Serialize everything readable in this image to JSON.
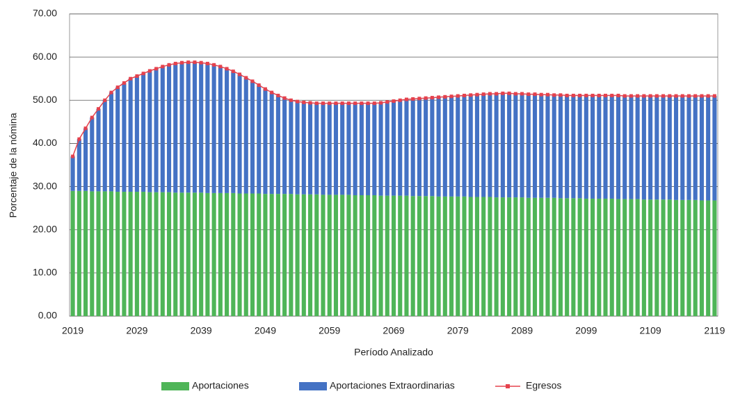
{
  "chart_data": {
    "type": "stacked_bar_line",
    "ylabel": "Porcentaje de la nómina",
    "xlabel": "Período Analizado",
    "categories": [
      "2019",
      null,
      null,
      null,
      null,
      null,
      null,
      null,
      null,
      null,
      "2029",
      null,
      null,
      null,
      null,
      null,
      null,
      null,
      null,
      null,
      "2039",
      null,
      null,
      null,
      null,
      null,
      null,
      null,
      null,
      null,
      "2049",
      null,
      null,
      null,
      null,
      null,
      null,
      null,
      null,
      null,
      "2059",
      null,
      null,
      null,
      null,
      null,
      null,
      null,
      null,
      null,
      "2069",
      null,
      null,
      null,
      null,
      null,
      null,
      null,
      null,
      null,
      "2079",
      null,
      null,
      null,
      null,
      null,
      null,
      null,
      null,
      null,
      "2089",
      null,
      null,
      null,
      null,
      null,
      null,
      null,
      null,
      null,
      "2099",
      null,
      null,
      null,
      null,
      null,
      null,
      null,
      null,
      null,
      "2109",
      null,
      null,
      null,
      null,
      null,
      null,
      null,
      null,
      null,
      "2119"
    ],
    "ylim": [
      0,
      70
    ],
    "yticks": [
      {
        "value": 0,
        "label": "0.00"
      },
      {
        "value": 10,
        "label": "10.00"
      },
      {
        "value": 20,
        "label": "20.00"
      },
      {
        "value": 30,
        "label": "30.00"
      },
      {
        "value": 40,
        "label": "40.00"
      },
      {
        "value": 50,
        "label": "50.00"
      },
      {
        "value": 60,
        "label": "60.00"
      },
      {
        "value": 70,
        "label": "70.00"
      }
    ],
    "grid": true,
    "legend": "bottom",
    "series": [
      {
        "name": "Aportaciones",
        "color": "#4fb558",
        "kind": "bar",
        "values": [
          29,
          29,
          29,
          28.9,
          28.9,
          28.9,
          28.9,
          28.8,
          28.8,
          28.8,
          28.8,
          28.8,
          28.7,
          28.7,
          28.7,
          28.7,
          28.6,
          28.6,
          28.6,
          28.6,
          28.6,
          28.5,
          28.5,
          28.5,
          28.5,
          28.5,
          28.4,
          28.4,
          28.4,
          28.4,
          28.3,
          28.3,
          28.3,
          28.3,
          28.3,
          28.2,
          28.2,
          28.2,
          28.2,
          28.1,
          28.1,
          28.1,
          28.1,
          28.1,
          28,
          28,
          28,
          28,
          27.9,
          27.9,
          27.9,
          27.9,
          27.9,
          27.8,
          27.8,
          27.8,
          27.8,
          27.7,
          27.7,
          27.7,
          27.7,
          27.7,
          27.6,
          27.6,
          27.6,
          27.6,
          27.5,
          27.5,
          27.5,
          27.5,
          27.5,
          27.4,
          27.4,
          27.4,
          27.4,
          27.4,
          27.3,
          27.3,
          27.3,
          27.3,
          27.2,
          27.2,
          27.2,
          27.2,
          27.2,
          27.1,
          27.1,
          27.1,
          27.1,
          27,
          27,
          27,
          27,
          27,
          26.9,
          26.9,
          26.9,
          26.9,
          26.8,
          26.8,
          26.8
        ]
      },
      {
        "name": "Aportaciones Extraordinarias",
        "color": "#4472c4",
        "kind": "bar",
        "values": [
          8,
          12,
          14.5,
          17.1,
          19.1,
          21.1,
          22.9,
          24.2,
          25.2,
          26.2,
          26.8,
          27.4,
          28.1,
          28.6,
          29.1,
          29.5,
          29.9,
          30.1,
          30.2,
          30.2,
          30.1,
          30,
          29.7,
          29.3,
          28.8,
          28.2,
          27.6,
          26.8,
          26,
          25.1,
          24.3,
          23.5,
          22.8,
          22.2,
          21.7,
          21.5,
          21.3,
          21.2,
          21.1,
          21.2,
          21.2,
          21.2,
          21.2,
          21.2,
          21.3,
          21.3,
          21.3,
          21.3,
          21.5,
          21.7,
          21.9,
          22.1,
          22.3,
          22.5,
          22.6,
          22.7,
          22.8,
          23,
          23.1,
          23.2,
          23.3,
          23.4,
          23.6,
          23.7,
          23.8,
          23.9,
          24,
          24.1,
          24.1,
          24,
          24,
          24,
          24,
          23.9,
          23.9,
          23.8,
          23.9,
          23.8,
          23.8,
          23.8,
          23.9,
          23.9,
          23.9,
          23.9,
          23.9,
          24,
          23.9,
          23.9,
          23.9,
          24,
          24,
          24,
          24,
          24,
          24.1,
          24.1,
          24.1,
          24.1,
          24.2,
          24.2,
          24.2
        ]
      },
      {
        "name": "Egresos",
        "color": "#e5424d",
        "kind": "line",
        "values": [
          37,
          41,
          43.5,
          46,
          48,
          50,
          51.8,
          53,
          54,
          55,
          55.6,
          56.2,
          56.8,
          57.3,
          57.8,
          58.2,
          58.5,
          58.7,
          58.8,
          58.8,
          58.7,
          58.5,
          58.2,
          57.8,
          57.3,
          56.7,
          56,
          55.2,
          54.4,
          53.5,
          52.6,
          51.8,
          51.1,
          50.5,
          50,
          49.7,
          49.5,
          49.4,
          49.3,
          49.3,
          49.3,
          49.3,
          49.3,
          49.3,
          49.3,
          49.3,
          49.3,
          49.3,
          49.4,
          49.6,
          49.8,
          50,
          50.2,
          50.3,
          50.4,
          50.5,
          50.6,
          50.7,
          50.8,
          50.9,
          51,
          51.1,
          51.2,
          51.3,
          51.4,
          51.5,
          51.5,
          51.6,
          51.6,
          51.5,
          51.5,
          51.4,
          51.4,
          51.3,
          51.3,
          51.2,
          51.2,
          51.1,
          51.1,
          51.1,
          51.1,
          51.1,
          51.1,
          51.1,
          51.1,
          51.1,
          51,
          51,
          51,
          51,
          51,
          51,
          51,
          51,
          51,
          51,
          51,
          51,
          51,
          51,
          51
        ]
      }
    ]
  }
}
